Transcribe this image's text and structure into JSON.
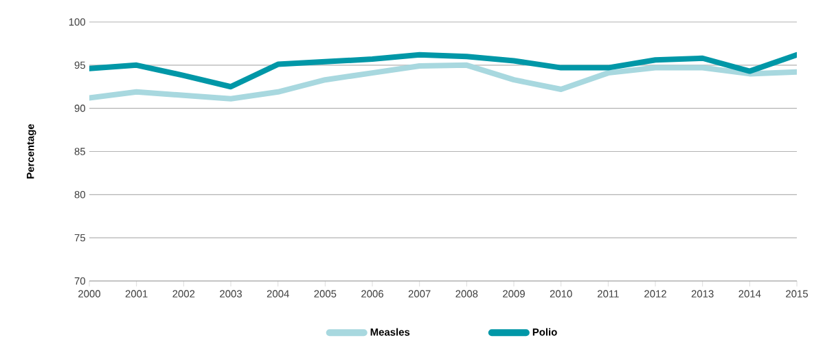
{
  "chart_data": {
    "type": "line",
    "ylabel": "Percentage",
    "x": [
      2000,
      2001,
      2002,
      2003,
      2004,
      2005,
      2006,
      2007,
      2008,
      2009,
      2010,
      2011,
      2012,
      2013,
      2014,
      2015
    ],
    "series": [
      {
        "name": "Measles",
        "color": "#a8d8df",
        "values": [
          91.2,
          91.9,
          91.5,
          91.1,
          91.9,
          93.3,
          94.1,
          94.9,
          95.0,
          93.3,
          92.2,
          94.1,
          94.7,
          94.7,
          94.0,
          94.2
        ]
      },
      {
        "name": "Polio",
        "color": "#0097a7",
        "values": [
          94.6,
          95.0,
          93.8,
          92.5,
          95.1,
          95.4,
          95.7,
          96.2,
          96.0,
          95.5,
          94.7,
          94.7,
          95.6,
          95.8,
          94.3,
          96.2
        ]
      }
    ],
    "xlim": [
      2000,
      2015
    ],
    "ylim": [
      70,
      100
    ],
    "xticks": [
      2000,
      2001,
      2002,
      2003,
      2004,
      2005,
      2006,
      2007,
      2008,
      2009,
      2010,
      2011,
      2012,
      2013,
      2014,
      2015
    ],
    "yticks": [
      70,
      75,
      80,
      85,
      90,
      95,
      100
    ],
    "grid": "y",
    "legend": "bottom",
    "marker": "none",
    "line_style": "solid"
  }
}
